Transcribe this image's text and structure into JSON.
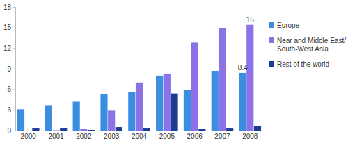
{
  "chart_data": {
    "type": "bar",
    "categories": [
      "2000",
      "2001",
      "2002",
      "2003",
      "2004",
      "2005",
      "2006",
      "2007",
      "2008"
    ],
    "series": [
      {
        "name": "Europe",
        "color": "#3b8de0",
        "values": [
          3.1,
          3.7,
          4.2,
          5.3,
          5.6,
          8.0,
          5.9,
          8.7,
          8.4
        ],
        "value_labels": [
          null,
          null,
          null,
          null,
          null,
          null,
          null,
          null,
          "8.4"
        ]
      },
      {
        "name": "Near and Middle East/ South-West Asia",
        "color": "#8b72e6",
        "values": [
          0,
          0.05,
          0.2,
          2.9,
          7.0,
          8.3,
          12.8,
          14.9,
          15.4
        ],
        "value_labels": [
          null,
          null,
          null,
          null,
          null,
          null,
          null,
          null,
          "15"
        ]
      },
      {
        "name": "Rest of the world",
        "color": "#1c3c91",
        "values": [
          0.3,
          0.3,
          0.1,
          0.5,
          0.3,
          5.4,
          0.2,
          0.3,
          0.7
        ],
        "value_labels": [
          null,
          null,
          null,
          null,
          null,
          null,
          null,
          null,
          null
        ]
      }
    ],
    "ylim": [
      0,
      18
    ],
    "yticks": [
      0,
      3,
      6,
      9,
      12,
      15,
      18
    ],
    "grid": false,
    "legend": "right",
    "data_labels": true
  }
}
